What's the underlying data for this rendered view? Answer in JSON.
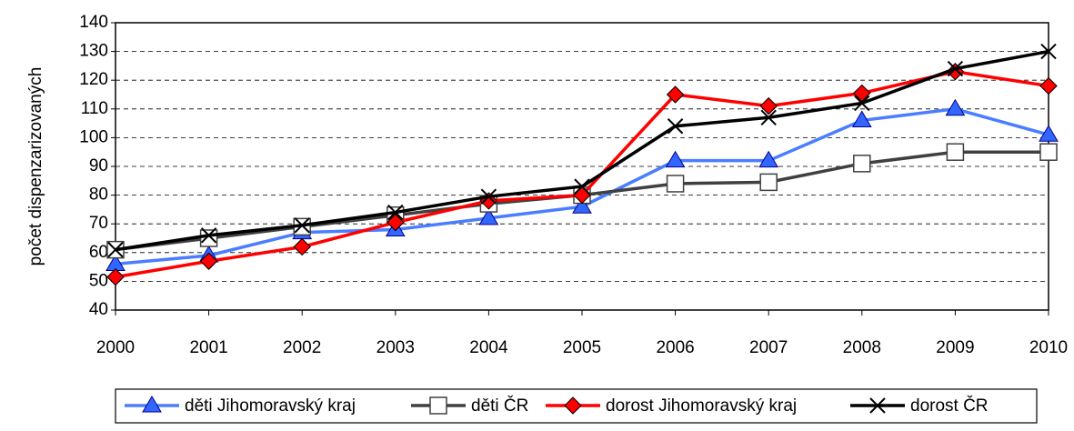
{
  "chart_data": {
    "type": "line",
    "y_label": "počet dispenzarizovaných",
    "categories": [
      "2000",
      "2001",
      "2002",
      "2003",
      "2004",
      "2005",
      "2006",
      "2007",
      "2008",
      "2009",
      "2010"
    ],
    "series": [
      {
        "name": "děti Jihomoravský kraj",
        "color": "#4a7dff",
        "marker": "triangle",
        "values": [
          56,
          59,
          67,
          68,
          72,
          76,
          92,
          92,
          106,
          110,
          101
        ]
      },
      {
        "name": "děti ČR",
        "color": "#404040",
        "marker": "square",
        "values": [
          61,
          65,
          69,
          73,
          77,
          80,
          84,
          84.5,
          91,
          95,
          95
        ]
      },
      {
        "name": "dorost Jihomoravský kraj",
        "color": "#ff0000",
        "marker": "diamond",
        "values": [
          51.5,
          57,
          62,
          70.5,
          78,
          80,
          115,
          111,
          115.5,
          123,
          118
        ]
      },
      {
        "name": "dorost ČR",
        "color": "#000000",
        "marker": "x",
        "values": [
          61,
          66,
          69.5,
          74,
          79.5,
          83,
          104,
          107,
          112,
          124,
          130
        ]
      }
    ],
    "ylim": [
      40,
      140
    ],
    "yticks": [
      40,
      50,
      60,
      70,
      80,
      90,
      100,
      110,
      120,
      130,
      140
    ],
    "grid": true,
    "legend": "bottom"
  }
}
